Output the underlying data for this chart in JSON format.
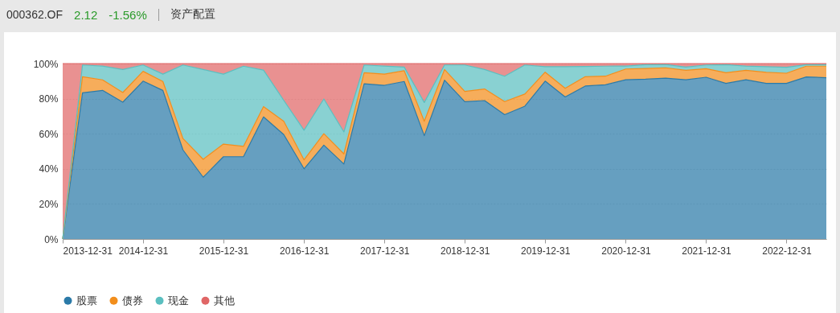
{
  "chart_data": {
    "type": "area",
    "stacked": true,
    "title": "000362.OF",
    "subtitle": "资产配置",
    "annotations": [
      "2.12",
      "-1.56%"
    ],
    "x": [
      "2013-12-31",
      "2014-03-31",
      "2014-06-30",
      "2014-09-30",
      "2014-12-31",
      "2015-03-31",
      "2015-06-30",
      "2015-09-30",
      "2015-12-31",
      "2016-03-31",
      "2016-06-30",
      "2016-09-30",
      "2016-12-31",
      "2017-03-31",
      "2017-06-30",
      "2017-09-30",
      "2017-12-31",
      "2018-03-31",
      "2018-06-30",
      "2018-09-30",
      "2018-12-31",
      "2019-03-31",
      "2019-06-30",
      "2019-09-30",
      "2019-12-31",
      "2020-03-31",
      "2020-06-30",
      "2020-09-30",
      "2020-12-31",
      "2021-03-31",
      "2021-06-30",
      "2021-09-30",
      "2021-12-31",
      "2022-03-31",
      "2022-06-30",
      "2022-09-30",
      "2022-12-31",
      "2023-03-31",
      "2023-06-30"
    ],
    "series": [
      {
        "name": "股票",
        "color": "#2b7aa8",
        "values": [
          0,
          83.3,
          84.7,
          78.0,
          90.0,
          84.7,
          50.8,
          35.2,
          46.9,
          46.9,
          69.6,
          59.5,
          40.0,
          53.5,
          42.7,
          88.5,
          87.6,
          89.8,
          58.9,
          90.5,
          78.3,
          78.9,
          70.9,
          75.7,
          90.0,
          81.0,
          87.2,
          87.9,
          90.8,
          91.1,
          91.7,
          90.8,
          92.2,
          88.7,
          90.8,
          88.7,
          88.7,
          92.4,
          91.9
        ]
      },
      {
        "name": "债券",
        "color": "#f28e1c",
        "values": [
          0,
          9.2,
          6.0,
          5.5,
          5.6,
          5.1,
          6.5,
          10.2,
          7.2,
          5.9,
          5.9,
          7.6,
          5.1,
          6.5,
          5.8,
          6.3,
          6.4,
          6.1,
          8.2,
          6.1,
          5.8,
          6.6,
          7.4,
          6.9,
          5.1,
          4.9,
          5.3,
          4.9,
          6.1,
          6.1,
          5.9,
          5.4,
          4.9,
          6.1,
          5.4,
          6.3,
          5.8,
          6.1,
          6.6
        ]
      },
      {
        "name": "现金",
        "color": "#5bbfc0",
        "values": [
          0,
          6.7,
          7.9,
          13.1,
          3.6,
          4.2,
          41.9,
          51.2,
          39.9,
          45.7,
          20.8,
          11.9,
          16.9,
          19.8,
          12.5,
          4.4,
          4.6,
          2.1,
          10.7,
          2.6,
          15.1,
          11.1,
          14.5,
          16.6,
          3.1,
          12.3,
          5.8,
          5.7,
          1.7,
          2.2,
          1.9,
          1.8,
          2.1,
          4.6,
          2.4,
          3.2,
          3.4,
          0.9,
          0.9
        ]
      },
      {
        "name": "其他",
        "color": "#e06666",
        "values": [
          100,
          0.8,
          1.4,
          3.4,
          0.8,
          6.0,
          0.8,
          3.4,
          6.0,
          1.5,
          3.7,
          21.0,
          38.0,
          20.2,
          39.0,
          0.8,
          1.4,
          2.0,
          22.2,
          0.8,
          0.8,
          3.4,
          7.2,
          0.8,
          1.8,
          1.8,
          1.7,
          1.5,
          1.4,
          0.6,
          0.5,
          2.0,
          0.8,
          0.6,
          1.4,
          1.8,
          2.1,
          0.6,
          0.6
        ]
      }
    ],
    "xlim": [
      "2013-12-31",
      "2023-06-30"
    ],
    "xticks": [
      "2013-12-31",
      "2014-12-31",
      "2015-12-31",
      "2016-12-31",
      "2017-12-31",
      "2018-12-31",
      "2019-12-31",
      "2020-12-31",
      "2021-12-31",
      "2022-12-31"
    ],
    "ylim": [
      0,
      100
    ],
    "yticks": [
      {
        "value": 0,
        "label": "0%"
      },
      {
        "value": 20,
        "label": "20%"
      },
      {
        "value": 40,
        "label": "40%"
      },
      {
        "value": 60,
        "label": "60%"
      },
      {
        "value": 80,
        "label": "80%"
      },
      {
        "value": 100,
        "label": "100%"
      }
    ],
    "grid": "y",
    "legend": "bottom"
  }
}
